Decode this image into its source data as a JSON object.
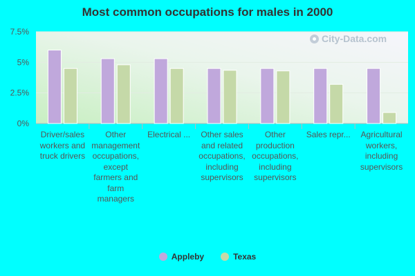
{
  "chart_data": {
    "type": "bar",
    "title": "Most common occupations for males in 2000",
    "xlabel": "",
    "ylabel": "",
    "categories": [
      "Driver/sales workers and truck drivers",
      "Other management occupations, except farmers and farm managers",
      "Electrical ...",
      "Other sales and related occupations, including supervisors",
      "Other production occupations, including supervisors",
      "Sales repr...",
      "Agricultural workers, including supervisors"
    ],
    "series": [
      {
        "name": "Appleby",
        "values": [
          6.0,
          5.3,
          5.3,
          4.5,
          4.5,
          4.5,
          4.5
        ],
        "color": "#c0a8dc"
      },
      {
        "name": "Texas",
        "values": [
          4.5,
          4.8,
          4.5,
          4.35,
          4.3,
          3.2,
          0.9
        ],
        "color": "#c5d9a8"
      }
    ],
    "yticks": [
      "0%",
      "2.5%",
      "5%",
      "7.5%"
    ],
    "ytick_values": [
      0,
      2.5,
      5,
      7.5
    ],
    "ylim": [
      0,
      7.5
    ],
    "grid": true,
    "legend_position": "bottom"
  },
  "watermark": "City-Data.com",
  "colors": {
    "background": "#00ffff",
    "plot_gradient_start": "#cdf0c8",
    "plot_gradient_end": "#f4f4fb"
  }
}
